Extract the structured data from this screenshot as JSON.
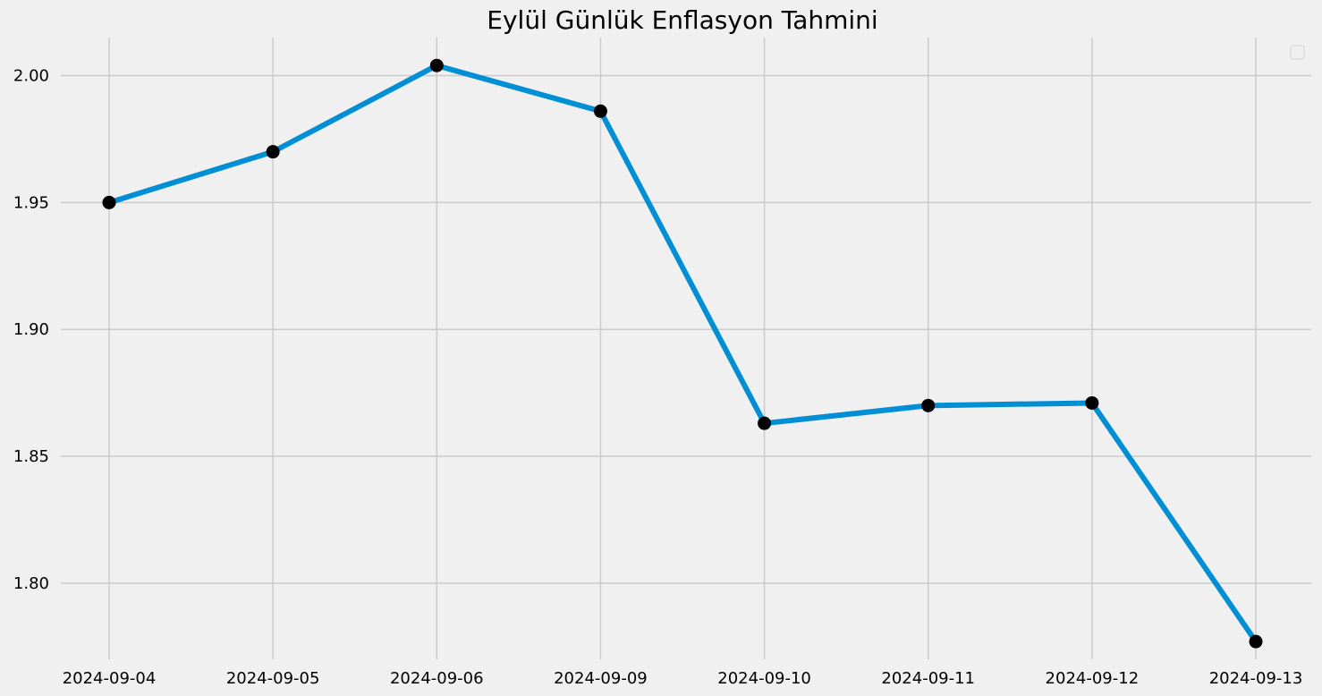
{
  "chart_data": {
    "type": "line",
    "title": "Eylül Günlük Enflasyon Tahmini",
    "xlabel": "",
    "ylabel": "",
    "categories": [
      "2024-09-04",
      "2024-09-05",
      "2024-09-06",
      "2024-09-09",
      "2024-09-10",
      "2024-09-11",
      "2024-09-12",
      "2024-09-13"
    ],
    "series": [
      {
        "values": [
          1.95,
          1.97,
          2.004,
          1.986,
          1.863,
          1.87,
          1.871,
          1.777
        ]
      }
    ],
    "yticks": [
      "1.80",
      "1.85",
      "1.90",
      "1.95",
      "2.00"
    ],
    "ylim": [
      1.77,
      2.015
    ],
    "grid": true,
    "legend": "top-right (empty)",
    "colors": {
      "line": "#008fd5",
      "marker": "#000000",
      "grid": "#cbcbcb",
      "background": "#f0f0f0"
    }
  }
}
